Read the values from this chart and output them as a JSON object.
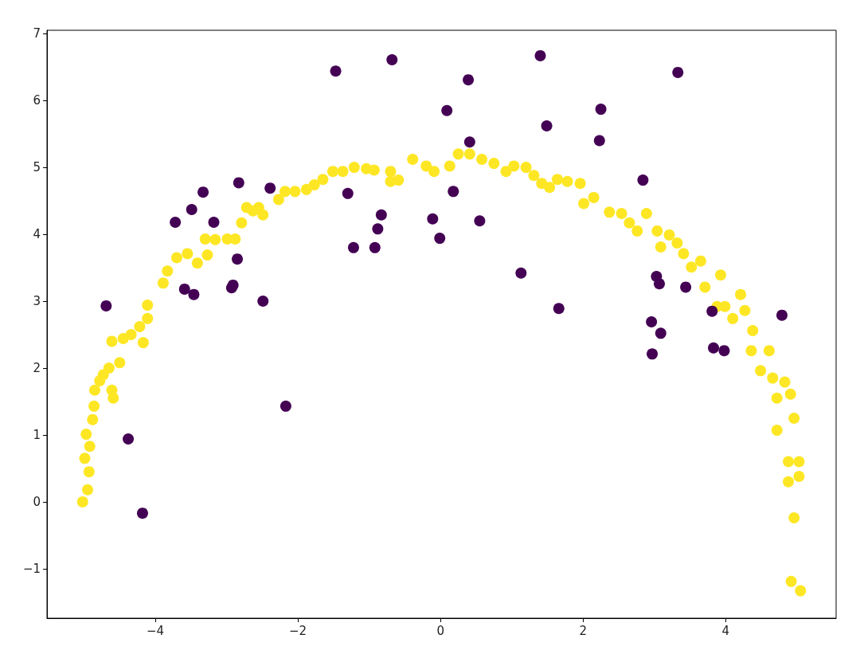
{
  "chart_data": {
    "type": "scatter",
    "marker": "circle",
    "grid": false,
    "xlim": [
      -5.52,
      5.55
    ],
    "xticks": [
      {
        "value": -4,
        "label": "−4"
      },
      {
        "value": -2,
        "label": "−2"
      },
      0,
      2,
      4
    ],
    "ylim": [
      -1.74,
      7.05
    ],
    "yticks": [
      {
        "value": -1,
        "label": "−1"
      },
      0,
      1,
      2,
      3,
      4,
      5,
      6,
      7
    ],
    "series": [
      {
        "color": "#fde725",
        "x": [
          -5.02,
          -4.95,
          -4.93,
          -4.99,
          -4.92,
          -4.97,
          -4.88,
          -4.86,
          -4.85,
          -4.78,
          -4.73,
          -4.65,
          -4.61,
          -4.59,
          -4.5,
          -4.61,
          -4.45,
          -4.34,
          -4.22,
          -4.17,
          -4.11,
          -4.11,
          -3.89,
          -3.83,
          -3.7,
          -3.55,
          -3.41,
          -3.3,
          -3.27,
          -3.16,
          -2.99,
          -2.88,
          -2.79,
          -2.72,
          -2.63,
          -2.55,
          -2.49,
          -2.27,
          -2.18,
          -2.04,
          -1.88,
          -1.77,
          -1.65,
          -1.51,
          -1.37,
          -1.21,
          -1.04,
          -0.93,
          -0.7,
          -0.7,
          -0.59,
          -0.39,
          -0.2,
          -0.09,
          0.13,
          0.25,
          0.41,
          0.58,
          0.75,
          0.92,
          1.03,
          1.2,
          1.31,
          1.42,
          1.53,
          1.64,
          1.78,
          1.96,
          2.01,
          2.15,
          2.37,
          2.54,
          2.65,
          2.76,
          2.89,
          3.04,
          3.09,
          3.21,
          3.32,
          3.41,
          3.52,
          3.65,
          3.71,
          3.93,
          3.88,
          3.99,
          4.1,
          4.21,
          4.27,
          4.38,
          4.36,
          4.49,
          4.61,
          4.66,
          4.72,
          4.83,
          4.91,
          4.72,
          4.96,
          4.88,
          5.03,
          4.88,
          5.03,
          4.96,
          4.92,
          5.05
        ],
        "values": [
          0.0,
          0.18,
          0.45,
          0.65,
          0.83,
          1.01,
          1.23,
          1.43,
          1.67,
          1.81,
          1.9,
          2.0,
          1.67,
          1.55,
          2.08,
          2.4,
          2.44,
          2.5,
          2.62,
          2.38,
          2.74,
          2.94,
          3.27,
          3.45,
          3.65,
          3.71,
          3.57,
          3.93,
          3.69,
          3.92,
          3.93,
          3.93,
          4.17,
          4.4,
          4.35,
          4.4,
          4.29,
          4.52,
          4.64,
          4.64,
          4.67,
          4.74,
          4.82,
          4.94,
          4.94,
          5.0,
          4.98,
          4.96,
          4.94,
          4.79,
          4.81,
          5.12,
          5.02,
          4.94,
          5.02,
          5.2,
          5.2,
          5.12,
          5.06,
          4.94,
          5.02,
          5.0,
          4.88,
          4.76,
          4.7,
          4.82,
          4.79,
          4.76,
          4.46,
          4.55,
          4.33,
          4.31,
          4.17,
          4.05,
          4.31,
          4.05,
          3.81,
          3.99,
          3.87,
          3.71,
          3.51,
          3.6,
          3.21,
          3.39,
          2.92,
          2.92,
          2.74,
          3.1,
          2.86,
          2.56,
          2.26,
          1.96,
          2.26,
          1.85,
          1.55,
          1.79,
          1.61,
          1.07,
          1.25,
          0.6,
          0.6,
          0.3,
          0.38,
          -0.24,
          -1.19,
          -1.33
        ]
      },
      {
        "color": "#440154",
        "x": [
          -4.69,
          -4.38,
          -4.18,
          -3.72,
          -3.49,
          -3.33,
          -3.18,
          -2.83,
          -2.85,
          -2.91,
          -2.93,
          -3.59,
          -3.46,
          -2.49,
          -2.39,
          -2.17,
          -1.47,
          -1.3,
          -1.22,
          -0.92,
          -0.88,
          -0.83,
          -0.68,
          -0.11,
          -0.01,
          0.09,
          0.18,
          0.39,
          0.41,
          0.55,
          1.13,
          1.4,
          1.49,
          1.66,
          2.25,
          2.23,
          2.84,
          3.03,
          3.07,
          2.96,
          3.09,
          2.97,
          3.33,
          3.44,
          3.81,
          3.83,
          3.98,
          4.79
        ],
        "values": [
          2.93,
          0.94,
          -0.17,
          4.18,
          4.37,
          4.63,
          4.18,
          4.77,
          3.63,
          3.24,
          3.2,
          3.18,
          3.1,
          3.0,
          4.69,
          1.43,
          6.44,
          4.61,
          3.8,
          3.8,
          4.08,
          4.29,
          6.61,
          4.23,
          3.94,
          5.85,
          4.64,
          6.31,
          5.38,
          4.2,
          3.42,
          6.67,
          5.62,
          2.89,
          5.87,
          5.4,
          4.81,
          3.37,
          3.26,
          2.69,
          2.52,
          2.21,
          6.42,
          3.21,
          2.85,
          2.3,
          2.26,
          2.79
        ]
      }
    ]
  }
}
